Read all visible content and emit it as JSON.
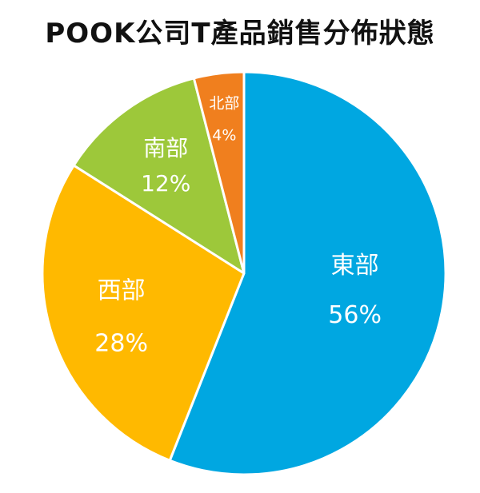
{
  "chart_data": {
    "type": "pie",
    "title": "POOK公司T產品銷售分佈狀態",
    "start_angle_deg": 0,
    "direction": "clockwise",
    "slices": [
      {
        "name": "東部",
        "value": 56,
        "label": "56%",
        "color": "#00a7e1"
      },
      {
        "name": "西部",
        "value": 28,
        "label": "28%",
        "color": "#ffb900"
      },
      {
        "name": "南部",
        "value": 12,
        "label": "12%",
        "color": "#9dc83a"
      },
      {
        "name": "北部",
        "value": 4,
        "label": "4%",
        "color": "#f07f1e"
      }
    ]
  }
}
